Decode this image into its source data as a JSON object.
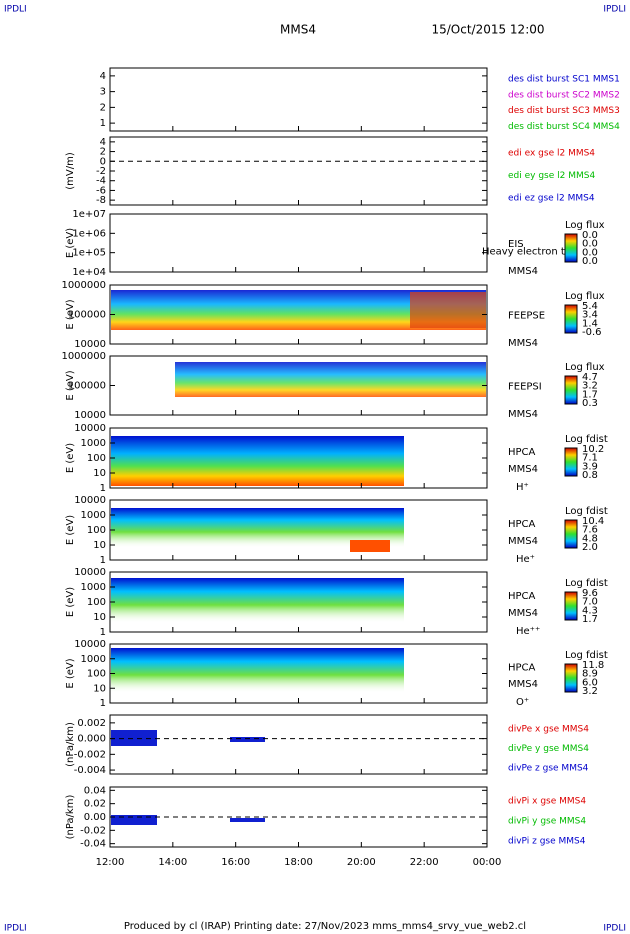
{
  "header": {
    "left": "IPDLI",
    "right": "IPDLI",
    "title": "MMS4",
    "date": "15/Oct/2015 12:00"
  },
  "x_ticks": [
    "12:00",
    "14:00",
    "16:00",
    "18:00",
    "20:00",
    "22:00",
    "00:00"
  ],
  "panels": [
    {
      "ylabel": null,
      "ylim": [
        0.5,
        4.5
      ],
      "yticks": [
        1,
        2,
        3,
        4
      ],
      "legend": [
        {
          "text": "des dist burst SC1 MMS1",
          "color": "#0000cc"
        },
        {
          "text": "des dist burst SC2 MMS2",
          "color": "#cc00cc"
        },
        {
          "text": "des dist burst SC3 MMS3",
          "color": "#dd0000"
        },
        {
          "text": "des dist burst SC4 MMS4",
          "color": "#00bb00"
        }
      ]
    },
    {
      "ylabel": "(mV/m)",
      "ylim": [
        -9,
        5
      ],
      "yticks": [
        4,
        2,
        0,
        -2,
        -4,
        -6,
        -8
      ],
      "zero_line": true,
      "legend": [
        {
          "text": "edi ex gse l2 MMS4",
          "color": "#dd0000"
        },
        {
          "text": "edi ey gse l2 MMS4",
          "color": "#00bb00"
        },
        {
          "text": "edi ez gse l2 MMS4",
          "color": "#0000cc"
        }
      ]
    },
    {
      "ylabel": "E (eV)",
      "log": true,
      "ylim": [
        10000,
        10000000
      ],
      "yticks": [
        {
          "value": 10000000,
          "label": "1e+07"
        },
        {
          "value": 1000000,
          "label": "1e+06"
        },
        {
          "value": 100000,
          "label": "1e+05"
        },
        {
          "value": 10000,
          "label": "1e+04"
        }
      ],
      "instrument": [
        "EIS",
        "MMS4"
      ],
      "overlay": "Heavy electron to",
      "colorbar": {
        "title": "Log flux",
        "labels": [
          "0.0",
          "0.0",
          "0.0",
          "0.0"
        ]
      }
    },
    {
      "ylabel": "E (eV)",
      "log": true,
      "ylim": [
        10000,
        1000000
      ],
      "yticks": [
        1000000,
        100000,
        10000
      ],
      "instrument": [
        "FEEPSE",
        "MMS4"
      ],
      "colorbar": {
        "title": "Log flux",
        "labels": [
          "5.4",
          "3.4",
          "1.4",
          "-0.6"
        ]
      }
    },
    {
      "ylabel": "E (eV)",
      "log": true,
      "ylim": [
        10000,
        1000000
      ],
      "yticks": [
        1000000,
        100000,
        10000
      ],
      "instrument": [
        "FEEPSI",
        "MMS4"
      ],
      "colorbar": {
        "title": "Log flux",
        "labels": [
          "4.7",
          "3.2",
          "1.7",
          "0.3"
        ]
      }
    },
    {
      "ylabel": "E (eV)",
      "log": true,
      "ylim": [
        1,
        10000
      ],
      "yticks": [
        10000,
        1000,
        100,
        10,
        1
      ],
      "instrument": [
        "HPCA",
        "MMS4",
        "H⁺"
      ],
      "colorbar": {
        "title": "Log fdist",
        "labels": [
          "10.2",
          "7.1",
          "3.9",
          "0.8"
        ]
      }
    },
    {
      "ylabel": "E (eV)",
      "log": true,
      "ylim": [
        1,
        10000
      ],
      "yticks": [
        10000,
        1000,
        100,
        10,
        1
      ],
      "instrument": [
        "HPCA",
        "MMS4",
        "He⁺"
      ],
      "colorbar": {
        "title": "Log fdist",
        "labels": [
          "10.4",
          "7.6",
          "4.8",
          "2.0"
        ]
      }
    },
    {
      "ylabel": "E (eV)",
      "log": true,
      "ylim": [
        1,
        10000
      ],
      "yticks": [
        10000,
        1000,
        100,
        10,
        1
      ],
      "instrument": [
        "HPCA",
        "MMS4",
        "He⁺⁺"
      ],
      "colorbar": {
        "title": "Log fdist",
        "labels": [
          "9.6",
          "7.0",
          "4.3",
          "1.7"
        ]
      }
    },
    {
      "ylabel": "E (eV)",
      "log": true,
      "ylim": [
        1,
        10000
      ],
      "yticks": [
        10000,
        1000,
        100,
        10,
        1
      ],
      "instrument": [
        "HPCA",
        "MMS4",
        "O⁺"
      ],
      "colorbar": {
        "title": "Log fdist",
        "labels": [
          "11.8",
          "8.9",
          "6.0",
          "3.2"
        ]
      }
    },
    {
      "ylabel": "(nPa/km)",
      "ylim": [
        -0.0045,
        0.003
      ],
      "yticks": [
        {
          "value": 0.002,
          "label": "0.002"
        },
        {
          "value": 0,
          "label": "0.000"
        },
        {
          "value": -0.002,
          "label": "-0.002"
        },
        {
          "value": -0.004,
          "label": "-0.004"
        }
      ],
      "zero_line": true,
      "legend": [
        {
          "text": "divPe x gse MMS4",
          "color": "#dd0000"
        },
        {
          "text": "divPe y gse MMS4",
          "color": "#00bb00"
        },
        {
          "text": "divPe z gse MMS4",
          "color": "#0000cc"
        }
      ]
    },
    {
      "ylabel": "(nPa/km)",
      "ylim": [
        -0.045,
        0.045
      ],
      "yticks": [
        {
          "value": 0.04,
          "label": "0.04"
        },
        {
          "value": 0.02,
          "label": "0.02"
        },
        {
          "value": 0,
          "label": "0.00"
        },
        {
          "value": -0.02,
          "label": "-0.02"
        },
        {
          "value": -0.04,
          "label": "-0.04"
        }
      ],
      "zero_line": true,
      "legend": [
        {
          "text": "divPi x gse MMS4",
          "color": "#dd0000"
        },
        {
          "text": "divPi y gse MMS4",
          "color": "#00bb00"
        },
        {
          "text": "divPi z gse MMS4",
          "color": "#0000cc"
        }
      ]
    }
  ],
  "footer": "Produced by cl (IRAP)   Printing date: 27/Nov/2023   mms_mms4_srvy_vue_web2.cl"
}
